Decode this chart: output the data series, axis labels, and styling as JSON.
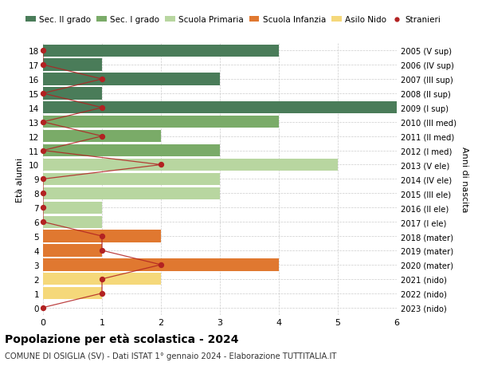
{
  "ages": [
    18,
    17,
    16,
    15,
    14,
    13,
    12,
    11,
    10,
    9,
    8,
    7,
    6,
    5,
    4,
    3,
    2,
    1,
    0
  ],
  "years": [
    "2005 (V sup)",
    "2006 (IV sup)",
    "2007 (III sup)",
    "2008 (II sup)",
    "2009 (I sup)",
    "2010 (III med)",
    "2011 (II med)",
    "2012 (I med)",
    "2013 (V ele)",
    "2014 (IV ele)",
    "2015 (III ele)",
    "2016 (II ele)",
    "2017 (I ele)",
    "2018 (mater)",
    "2019 (mater)",
    "2020 (mater)",
    "2021 (nido)",
    "2022 (nido)",
    "2023 (nido)"
  ],
  "bar_values": [
    4,
    1,
    3,
    1,
    6,
    4,
    2,
    3,
    5,
    3,
    3,
    1,
    1,
    2,
    1,
    4,
    2,
    1,
    0
  ],
  "bar_colors": [
    "#4a7c59",
    "#4a7c59",
    "#4a7c59",
    "#4a7c59",
    "#4a7c59",
    "#7aab68",
    "#7aab68",
    "#7aab68",
    "#b8d6a0",
    "#b8d6a0",
    "#b8d6a0",
    "#b8d6a0",
    "#b8d6a0",
    "#e07830",
    "#e07830",
    "#e07830",
    "#f5d87a",
    "#f5d87a",
    "#f5d87a"
  ],
  "stranieri_values": [
    0,
    0,
    1,
    0,
    1,
    0,
    1,
    0,
    2,
    0,
    0,
    0,
    0,
    1,
    1,
    2,
    1,
    1,
    0
  ],
  "stranieri_color": "#b22222",
  "legend_labels": [
    "Sec. II grado",
    "Sec. I grado",
    "Scuola Primaria",
    "Scuola Infanzia",
    "Asilo Nido",
    "Stranieri"
  ],
  "legend_colors": [
    "#4a7c59",
    "#7aab68",
    "#b8d6a0",
    "#e07830",
    "#f5d87a",
    "#b22222"
  ],
  "title": "Popolazione per età scolastica - 2024",
  "subtitle": "COMUNE DI OSIGLIA (SV) - Dati ISTAT 1° gennaio 2024 - Elaborazione TUTTITALIA.IT",
  "ylabel_left": "Età alunni",
  "ylabel_right": "Anni di nascita",
  "xlim": [
    0,
    6
  ],
  "xticks": [
    0,
    1,
    2,
    3,
    4,
    5,
    6
  ],
  "ylim": [
    -0.5,
    18.5
  ],
  "background_color": "#ffffff",
  "grid_color": "#cccccc"
}
